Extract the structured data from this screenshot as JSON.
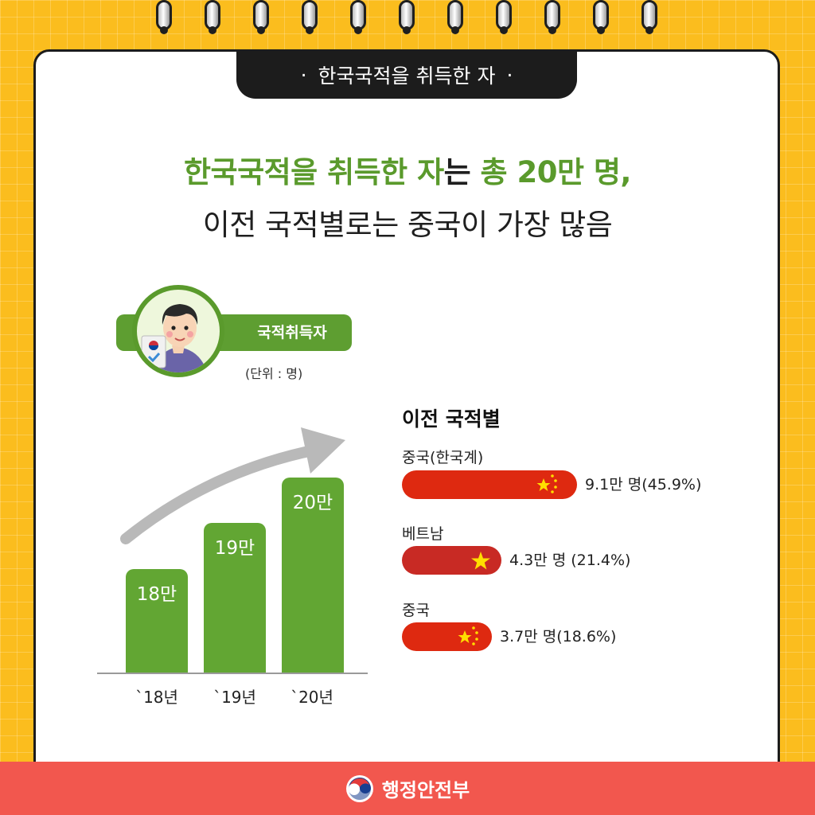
{
  "header": {
    "tab_title": "한국국적을 취득한 자"
  },
  "headline": {
    "line1_green_a": "한국국적을 취득한 자",
    "line1_dark": "는 ",
    "line1_green_b": "총 20만 명,",
    "line2": "이전 국적별로는 중국이 가장 많음"
  },
  "legend": {
    "label": "국적취득자",
    "unit": "(단위 : 명)"
  },
  "chart_data": [
    {
      "type": "bar",
      "categories": [
        "`18년",
        "`19년",
        "`20년"
      ],
      "values": [
        18,
        19,
        20
      ],
      "data_labels": [
        "18만",
        "19만",
        "20만"
      ]
    },
    {
      "type": "bar",
      "title": "이전 국적별",
      "categories": [
        "중국(한국계)",
        "베트남",
        "중국"
      ],
      "values": [
        9.1,
        4.3,
        3.7
      ],
      "percentages": [
        45.9,
        21.4,
        18.6
      ],
      "data_labels": [
        "9.1만 명(45.9%)",
        "4.3만 명 (21.4%)",
        "3.7만 명(18.6%)"
      ],
      "flags": [
        "china-flag",
        "vietnam-flag",
        "china-flag"
      ]
    }
  ],
  "colors": {
    "green": "#62a633",
    "china_red": "#de2910",
    "vietnam_red": "#c82a24",
    "footer_red": "#f2574e",
    "background": "#fbbd1e"
  },
  "footer": {
    "org": "행정안전부",
    "emblem_icon": "taegeuk-emblem-icon"
  }
}
